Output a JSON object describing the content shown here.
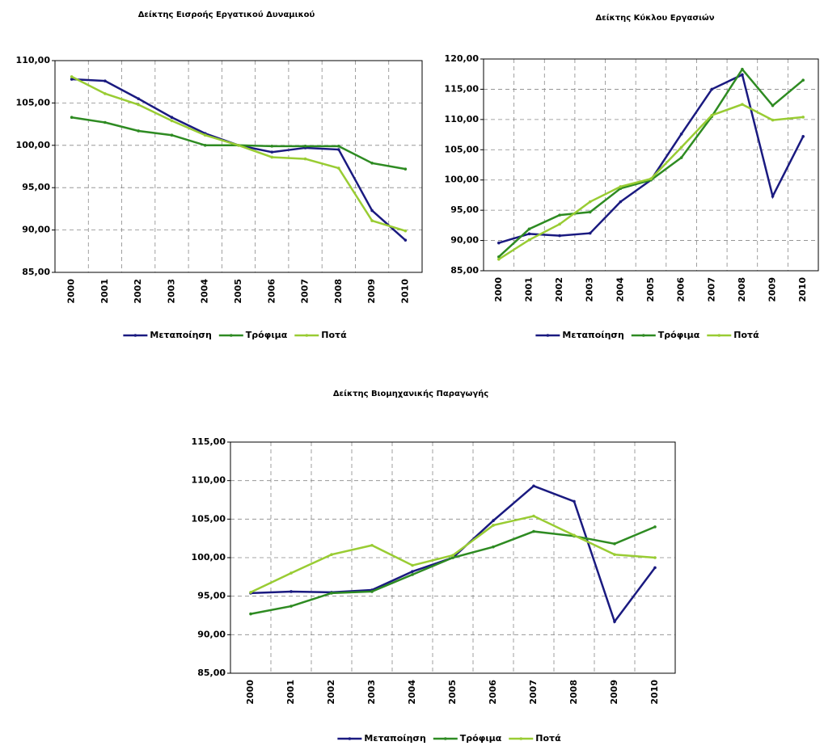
{
  "chart_data": [
    {
      "type": "line",
      "title": "Δείκτης Εισροής Εργατικού Δυναμικού",
      "categories": [
        "2000",
        "2001",
        "2002",
        "2003",
        "2004",
        "2005",
        "2006",
        "2007",
        "2008",
        "2009",
        "2010"
      ],
      "series": [
        {
          "name": "Μεταποίηση",
          "color": "#1a1a80",
          "values": [
            107.8,
            107.6,
            105.5,
            103.3,
            101.4,
            100.0,
            99.2,
            99.7,
            99.5,
            92.3,
            88.8
          ]
        },
        {
          "name": "Τρόφιμα",
          "color": "#2e8b22",
          "values": [
            103.3,
            102.7,
            101.7,
            101.2,
            100.0,
            100.0,
            99.9,
            99.9,
            99.9,
            97.9,
            97.2
          ]
        },
        {
          "name": "Ποτά",
          "color": "#99cc33",
          "values": [
            108.1,
            106.1,
            104.8,
            102.9,
            101.2,
            100.0,
            98.6,
            98.4,
            97.3,
            91.1,
            89.9
          ]
        }
      ],
      "ylim": [
        85,
        110
      ],
      "yticks": [
        {
          "value": 85,
          "label": "85,00"
        },
        {
          "value": 90,
          "label": "90,00"
        },
        {
          "value": 95,
          "label": "95,00"
        },
        {
          "value": 100,
          "label": "100,00"
        },
        {
          "value": 105,
          "label": "105,00"
        },
        {
          "value": 110,
          "label": "110,00"
        }
      ],
      "grid": true,
      "legend": "bottom"
    },
    {
      "type": "line",
      "title": "Δείκτης  Κύκλου Εργασιών",
      "categories": [
        "2000",
        "2001",
        "2002",
        "2003",
        "2004",
        "2005",
        "2006",
        "2007",
        "2008",
        "2009",
        "2010"
      ],
      "series": [
        {
          "name": "Μεταποίηση",
          "color": "#1a1a80",
          "values": [
            89.6,
            91.1,
            90.8,
            91.2,
            96.4,
            100.0,
            107.6,
            115.0,
            117.4,
            97.3,
            107.2
          ]
        },
        {
          "name": "Τρόφιμα",
          "color": "#2e8b22",
          "values": [
            87.3,
            91.9,
            94.2,
            94.7,
            98.6,
            100.0,
            103.7,
            110.5,
            118.3,
            112.3,
            116.5
          ]
        },
        {
          "name": "Ποτά",
          "color": "#99cc33",
          "values": [
            86.9,
            90.1,
            92.7,
            96.4,
            98.9,
            100.2,
            105.4,
            110.7,
            112.5,
            109.9,
            110.4
          ]
        }
      ],
      "ylim": [
        85,
        120
      ],
      "yticks": [
        {
          "value": 85,
          "label": "85,00"
        },
        {
          "value": 90,
          "label": "90,00"
        },
        {
          "value": 95,
          "label": "95,00"
        },
        {
          "value": 100,
          "label": "100,00"
        },
        {
          "value": 105,
          "label": "105,00"
        },
        {
          "value": 110,
          "label": "110,00"
        },
        {
          "value": 115,
          "label": "115,00"
        },
        {
          "value": 120,
          "label": "120,00"
        }
      ],
      "grid": true,
      "legend": "bottom"
    },
    {
      "type": "line",
      "title": "Δείκτης Βιομηχανικής Παραγωγής",
      "categories": [
        "2000",
        "2001",
        "2002",
        "2003",
        "2004",
        "2005",
        "2006",
        "2007",
        "2008",
        "2009",
        "2010"
      ],
      "series": [
        {
          "name": "Μεταποίηση",
          "color": "#1a1a80",
          "values": [
            95.4,
            95.6,
            95.5,
            95.8,
            98.2,
            100.0,
            104.8,
            109.3,
            107.3,
            91.7,
            98.7
          ]
        },
        {
          "name": "Τρόφιμα",
          "color": "#2e8b22",
          "values": [
            92.7,
            93.7,
            95.4,
            95.6,
            97.8,
            100.0,
            101.4,
            103.4,
            102.8,
            101.8,
            104.0
          ]
        },
        {
          "name": "Ποτά",
          "color": "#99cc33",
          "values": [
            95.5,
            98.0,
            100.4,
            101.6,
            99.0,
            100.3,
            104.2,
            105.4,
            102.9,
            100.4,
            100.0
          ]
        }
      ],
      "ylim": [
        85,
        115
      ],
      "yticks": [
        {
          "value": 85,
          "label": "85,00"
        },
        {
          "value": 90,
          "label": "90,00"
        },
        {
          "value": 95,
          "label": "95,00"
        },
        {
          "value": 100,
          "label": "100,00"
        },
        {
          "value": 105,
          "label": "105,00"
        },
        {
          "value": 110,
          "label": "110,00"
        },
        {
          "value": 115,
          "label": "115,00"
        }
      ],
      "grid": true,
      "legend": "bottom"
    }
  ]
}
